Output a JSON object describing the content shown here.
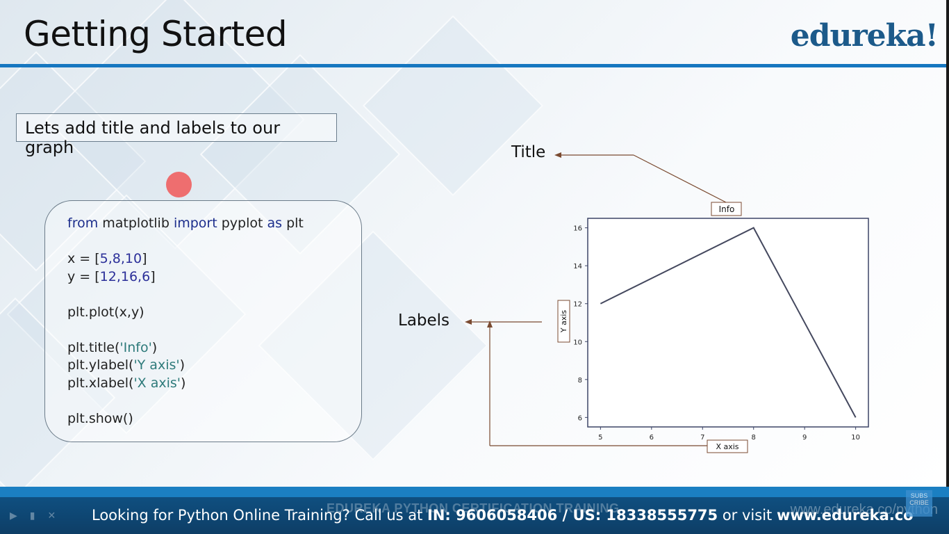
{
  "slide": {
    "title": "Getting Started",
    "logo": "edureka!",
    "subtitle": "Lets add title and labels to our graph"
  },
  "code": {
    "line_import": {
      "kw1": "from",
      "mod": " matplotlib ",
      "kw2": "import",
      "rest": " pyplot ",
      "kw3": "as",
      "alias": " plt"
    },
    "line_x": {
      "pre": "x = [",
      "vals": "5,8,10",
      "post": "]"
    },
    "line_y": {
      "pre": "y = [",
      "vals": "12,16,6",
      "post": "]"
    },
    "line_plot": "plt.plot(x,y)",
    "line_title": {
      "pre": "plt.title(",
      "arg": "'Info'",
      "post": ")"
    },
    "line_ylabel": {
      "pre": "plt.ylabel(",
      "arg": "'Y axis'",
      "post": ")"
    },
    "line_xlabel": {
      "pre": "plt.xlabel(",
      "arg": "'X axis'",
      "post": ")"
    },
    "line_show": "plt.show()"
  },
  "annotations": {
    "title_label": "Title",
    "labels_label": "Labels"
  },
  "chart_data": {
    "type": "line",
    "title": "Info",
    "xlabel": "X axis",
    "ylabel": "Y axis",
    "x": [
      5,
      8,
      10
    ],
    "series": [
      {
        "values": [
          12,
          16,
          6
        ]
      }
    ],
    "xticks": [
      5,
      6,
      7,
      8,
      9,
      10
    ],
    "yticks": [
      6,
      8,
      10,
      12,
      14,
      16
    ],
    "xlim": [
      4.75,
      10.25
    ],
    "ylim": [
      5.5,
      16.5
    ],
    "grid": false,
    "colors": {
      "line": "#44485e",
      "frame": "#3c4466",
      "annotation": "#7a4a30"
    }
  },
  "footer": {
    "watermark": "EDUREKA PYTHON CERTIFICATION TRAINING",
    "url_watermark": "www.edureka.co/python",
    "text_pre": "Looking for Python Online Training? Call us at ",
    "phone": "IN: 9606058406 / US: 18338555775",
    "text_mid": " or visit ",
    "site": "www.edureka.co",
    "badge": "SUBS CRIBE"
  }
}
